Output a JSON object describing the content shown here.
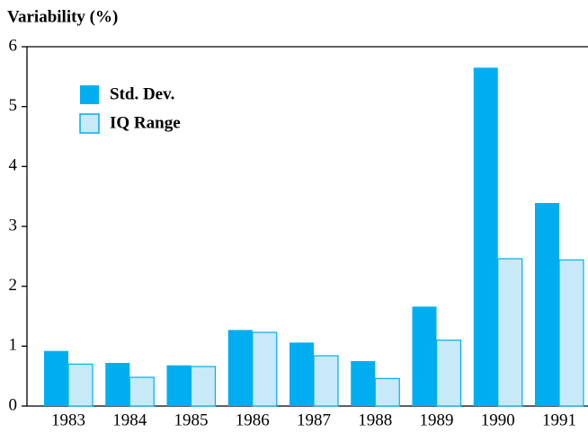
{
  "chart_data": {
    "type": "bar",
    "y_label": "Variability (%)",
    "categories": [
      "1983",
      "1984",
      "1985",
      "1986",
      "1987",
      "1988",
      "1989",
      "1990",
      "1991"
    ],
    "series": [
      {
        "name": "Std. Dev.",
        "color": "#00aeef",
        "values": [
          0.92,
          0.72,
          0.68,
          1.27,
          1.06,
          0.75,
          1.66,
          5.65,
          3.39
        ]
      },
      {
        "name": "IQ Range",
        "color": "#c8e9f8",
        "values": [
          0.7,
          0.48,
          0.66,
          1.23,
          0.84,
          0.46,
          1.1,
          2.46,
          2.44
        ]
      }
    ],
    "ylim": [
      0,
      6
    ],
    "yticks": [
      0,
      1,
      2,
      3,
      4,
      5,
      6
    ],
    "grid": false,
    "legend": "upper left"
  }
}
